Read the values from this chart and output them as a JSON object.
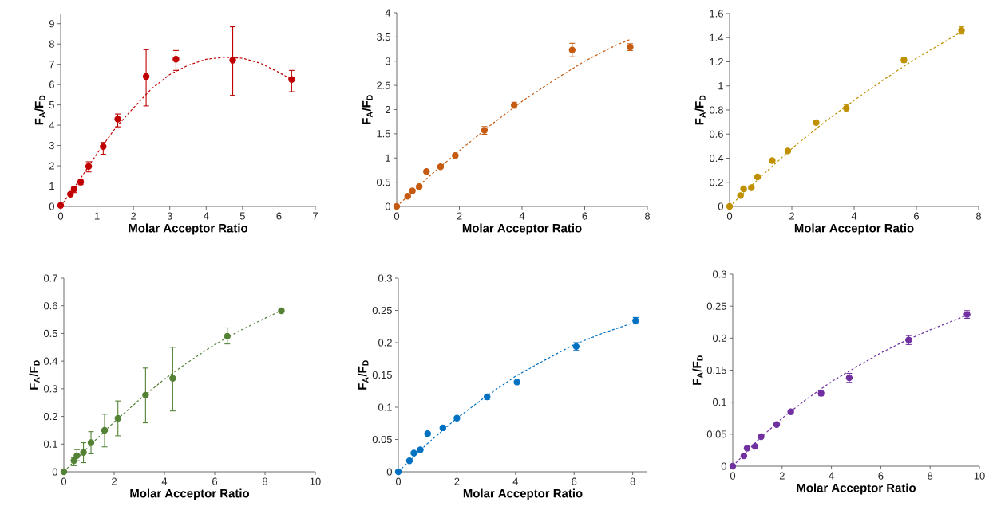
{
  "chart_data": [
    {
      "type": "scatter",
      "xlabel": "Molar Acceptor Ratio",
      "ylabel": "F$_{A}$/F$_{D}$",
      "xlim": [
        0,
        7
      ],
      "ylim": [
        0,
        9.5
      ],
      "xticks": [
        0,
        1,
        2,
        3,
        4,
        5,
        6,
        7
      ],
      "yticks": [
        0,
        1,
        2,
        3,
        4,
        5,
        6,
        7,
        8,
        9
      ],
      "series": [
        {
          "type": "scatter",
          "color": "#c00000",
          "marker": "circle",
          "x": [
            0,
            0.27,
            0.37,
            0.55,
            0.77,
            1.17,
            1.57,
            2.35,
            3.17,
            4.73,
            6.35
          ],
          "values": [
            0.05,
            0.6,
            0.85,
            1.2,
            1.97,
            2.95,
            4.3,
            6.4,
            7.25,
            7.2,
            6.25
          ],
          "errors": [
            null,
            [
              0.55,
              0.68
            ],
            [
              0.68,
              0.95
            ],
            [
              1.07,
              1.3
            ],
            [
              1.7,
              2.2
            ],
            [
              2.57,
              3.15
            ],
            [
              3.92,
              4.55
            ],
            [
              4.95,
              7.72
            ],
            [
              6.7,
              7.68
            ],
            [
              5.47,
              8.85
            ],
            [
              5.65,
              6.7
            ]
          ]
        },
        {
          "type": "line",
          "color": "#c00000",
          "marker": "none",
          "line_style": "dashed",
          "x": [
            0,
            0.5,
            1,
            1.5,
            2,
            2.5,
            3,
            3.5,
            4,
            4.5,
            5,
            5.5,
            6,
            6.35
          ],
          "values": [
            0,
            1.25,
            2.6,
            3.85,
            4.85,
            5.8,
            6.5,
            6.95,
            7.25,
            7.35,
            7.3,
            7.05,
            6.6,
            6.25
          ]
        }
      ]
    },
    {
      "type": "scatter",
      "xlabel": "Molar Acceptor Ratio",
      "ylabel": "F$_{A}$/F$_{D}$",
      "xlim": [
        0,
        8
      ],
      "ylim": [
        0,
        4
      ],
      "xticks": [
        0,
        2,
        4,
        6,
        8
      ],
      "yticks": [
        0,
        0.5,
        1,
        1.5,
        2,
        2.5,
        3,
        3.5,
        4
      ],
      "series": [
        {
          "type": "scatter",
          "color": "#c55a11",
          "marker": "circle",
          "x": [
            0,
            0.35,
            0.5,
            0.72,
            0.95,
            1.4,
            1.87,
            2.8,
            3.75,
            5.6,
            7.45
          ],
          "values": [
            0,
            0.21,
            0.32,
            0.41,
            0.72,
            0.82,
            1.05,
            1.57,
            2.09,
            3.23,
            3.29
          ],
          "errors": [
            null,
            0.03,
            0.03,
            0.03,
            0.03,
            0.03,
            0.03,
            0.08,
            0.06,
            0.14,
            0.07
          ]
        },
        {
          "type": "line",
          "color": "#c55a11",
          "marker": "none",
          "line_style": "dashed",
          "x": [
            0,
            1,
            2,
            3,
            4,
            5,
            6,
            7,
            7.45
          ],
          "values": [
            0,
            0.6,
            1.15,
            1.68,
            2.17,
            2.6,
            3.0,
            3.33,
            3.45
          ]
        }
      ]
    },
    {
      "type": "scatter",
      "xlabel": "Molar Acceptor Ratio",
      "ylabel": "F$_{A}$/F$_{D}$",
      "xlim": [
        0,
        8
      ],
      "ylim": [
        0,
        1.6
      ],
      "xticks": [
        0,
        2,
        4,
        6,
        8
      ],
      "yticks": [
        0,
        0.2,
        0.4,
        0.6,
        0.8,
        1,
        1.2,
        1.4,
        1.6
      ],
      "series": [
        {
          "type": "scatter",
          "color": "#bf9000",
          "marker": "circle",
          "x": [
            0,
            0.35,
            0.45,
            0.7,
            0.9,
            1.37,
            1.87,
            2.78,
            3.75,
            5.6,
            7.45
          ],
          "values": [
            0,
            0.09,
            0.145,
            0.155,
            0.245,
            0.38,
            0.46,
            0.695,
            0.815,
            1.215,
            1.46
          ],
          "errors": [
            null,
            0.01,
            0.01,
            0.01,
            0.01,
            0.01,
            0.01,
            0.01,
            0.03,
            0.02,
            0.03
          ]
        },
        {
          "type": "line",
          "color": "#bf9000",
          "marker": "none",
          "line_style": "dashed",
          "x": [
            0,
            1,
            2,
            3,
            4,
            5,
            6,
            7,
            7.45
          ],
          "values": [
            0,
            0.245,
            0.48,
            0.69,
            0.88,
            1.06,
            1.23,
            1.38,
            1.45
          ]
        }
      ]
    },
    {
      "type": "scatter",
      "xlabel": "Molar Acceptor Ratio",
      "ylabel": "F$_{A}$/F$_{D}$",
      "xlim": [
        0,
        10
      ],
      "ylim": [
        0,
        0.7
      ],
      "xticks": [
        0,
        2,
        4,
        6,
        8,
        10
      ],
      "yticks": [
        0,
        0.1,
        0.2,
        0.3,
        0.4,
        0.5,
        0.6,
        0.7
      ],
      "series": [
        {
          "type": "scatter",
          "color": "#548235",
          "marker": "circle",
          "x": [
            0,
            0.4,
            0.52,
            0.78,
            1.08,
            1.62,
            2.15,
            3.25,
            4.33,
            6.5,
            8.65
          ],
          "values": [
            0,
            0.04,
            0.058,
            0.07,
            0.105,
            0.15,
            0.193,
            0.277,
            0.338,
            0.49,
            0.582
          ],
          "errors": [
            null,
            [
              0.022,
              0.05
            ],
            [
              0.04,
              0.08
            ],
            [
              0.033,
              0.105
            ],
            [
              0.065,
              0.145
            ],
            [
              0.09,
              0.208
            ],
            [
              0.13,
              0.256
            ],
            [
              0.177,
              0.375
            ],
            [
              0.22,
              0.45
            ],
            [
              0.462,
              0.52
            ],
            null
          ]
        },
        {
          "type": "line",
          "color": "#548235",
          "marker": "none",
          "line_style": "dashed",
          "x": [
            0,
            1,
            2,
            3,
            4,
            5,
            6,
            7,
            8,
            8.65
          ],
          "values": [
            0,
            0.092,
            0.18,
            0.26,
            0.335,
            0.4,
            0.46,
            0.51,
            0.555,
            0.583
          ]
        }
      ]
    },
    {
      "type": "scatter",
      "xlabel": "Molar Acceptor Ratio",
      "ylabel": "F$_{A}$/F$_{D}$",
      "xlim": [
        0,
        8.5
      ],
      "ylim": [
        0,
        0.3
      ],
      "xticks": [
        0,
        2,
        4,
        6,
        8
      ],
      "yticks": [
        0,
        0.05,
        0.1,
        0.15,
        0.2,
        0.25,
        0.3
      ],
      "series": [
        {
          "type": "scatter",
          "color": "#0070c0",
          "marker": "circle",
          "x": [
            0,
            0.38,
            0.53,
            0.75,
            1.0,
            1.52,
            2.0,
            3.03,
            4.05,
            6.07,
            8.1
          ],
          "values": [
            0,
            0.017,
            0.029,
            0.034,
            0.059,
            0.068,
            0.083,
            0.116,
            0.139,
            0.194,
            0.234
          ],
          "errors": [
            null,
            null,
            null,
            null,
            0.002,
            0.002,
            0.002,
            0.004,
            0.002,
            0.006,
            0.005
          ]
        },
        {
          "type": "line",
          "color": "#0070c0",
          "marker": "none",
          "line_style": "dashed",
          "x": [
            0,
            1,
            2,
            3,
            4,
            5,
            6,
            7,
            8.1
          ],
          "values": [
            0,
            0.044,
            0.083,
            0.117,
            0.148,
            0.173,
            0.197,
            0.215,
            0.232
          ]
        }
      ]
    },
    {
      "type": "scatter",
      "xlabel": "Molar Acceptor Ratio",
      "ylabel": "F$_{A}$/F$_{D}$",
      "xlim": [
        0,
        10
      ],
      "ylim": [
        0,
        0.3
      ],
      "xticks": [
        0,
        2,
        4,
        6,
        8,
        10
      ],
      "yticks": [
        0,
        0.05,
        0.1,
        0.15,
        0.2,
        0.25,
        0.3
      ],
      "series": [
        {
          "type": "scatter",
          "color": "#7030a0",
          "marker": "circle",
          "x": [
            0,
            0.45,
            0.58,
            0.9,
            1.15,
            1.78,
            2.35,
            3.58,
            4.72,
            7.13,
            9.5
          ],
          "values": [
            0,
            0.016,
            0.028,
            0.031,
            0.046,
            0.065,
            0.085,
            0.114,
            0.138,
            0.197,
            0.237
          ],
          "errors": [
            null,
            null,
            null,
            null,
            0.002,
            0.002,
            0.002,
            0.004,
            0.007,
            0.007,
            0.006
          ]
        },
        {
          "type": "line",
          "color": "#7030a0",
          "marker": "none",
          "line_style": "dashed",
          "x": [
            0,
            1,
            2,
            3,
            4,
            5,
            6,
            7,
            8,
            9,
            9.5
          ],
          "values": [
            0,
            0.04,
            0.075,
            0.105,
            0.132,
            0.155,
            0.177,
            0.196,
            0.213,
            0.228,
            0.236
          ]
        }
      ]
    }
  ]
}
